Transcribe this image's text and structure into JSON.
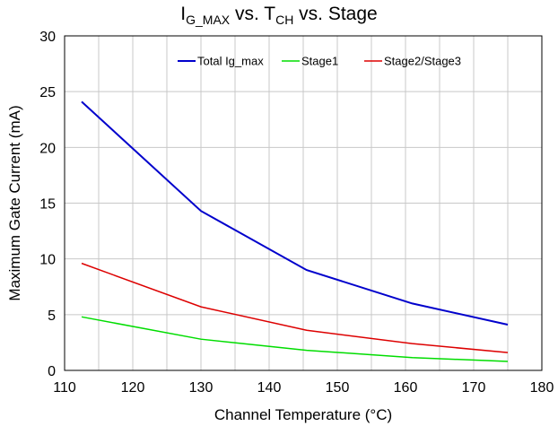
{
  "chart_data": {
    "type": "line",
    "title": {
      "main": "I",
      "main_sub": "G_MAX",
      "mid": " vs. T",
      "mid_sub": "CH",
      "tail": " vs. Stage"
    },
    "xlabel": "Channel Temperature (°C)",
    "ylabel": "Maximum Gate Current (mA)",
    "xlim": [
      110,
      180
    ],
    "ylim": [
      0,
      30
    ],
    "xticks": [
      "110",
      "120",
      "130",
      "140",
      "150",
      "160",
      "170",
      "180"
    ],
    "yticks": [
      "0",
      "5",
      "10",
      "15",
      "20",
      "25",
      "30"
    ],
    "grid": true,
    "legend_position": "top",
    "x": [
      112.5,
      130,
      145.5,
      161,
      175
    ],
    "series": [
      {
        "name": "Total Ig_max",
        "color": "#0000cc",
        "values": [
          24.1,
          14.3,
          9.0,
          6.0,
          4.1
        ]
      },
      {
        "name": "Stage1",
        "color": "#00dd00",
        "values": [
          4.8,
          2.8,
          1.8,
          1.15,
          0.8
        ]
      },
      {
        "name": "Stage2/Stage3",
        "color": "#dd0000",
        "values": [
          9.6,
          5.7,
          3.6,
          2.4,
          1.6
        ]
      }
    ]
  }
}
